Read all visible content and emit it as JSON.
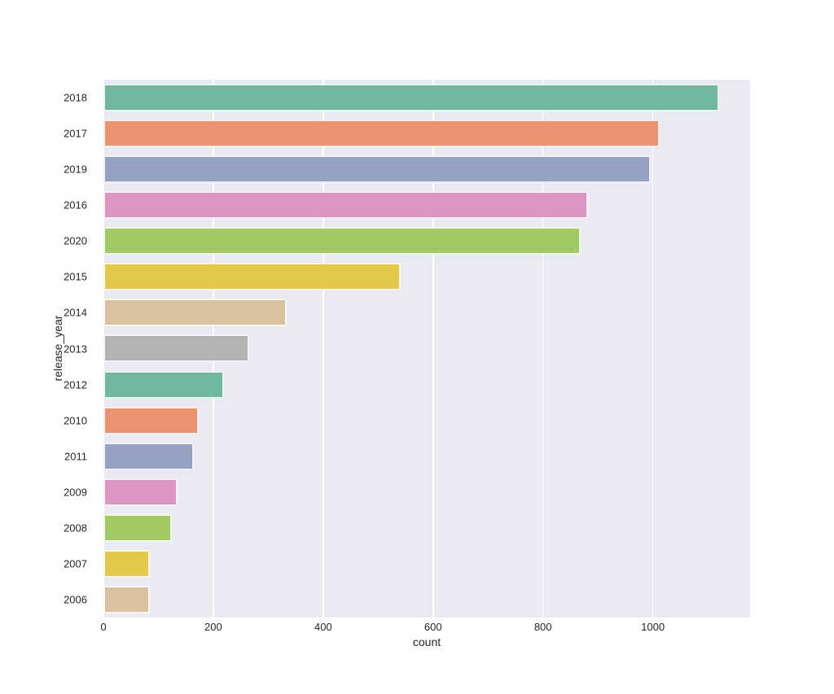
{
  "chart_data": {
    "type": "bar",
    "orientation": "horizontal",
    "title": "",
    "xlabel": "count",
    "ylabel": "release_year",
    "categories": [
      "2018",
      "2017",
      "2019",
      "2016",
      "2020",
      "2015",
      "2014",
      "2013",
      "2012",
      "2010",
      "2011",
      "2009",
      "2008",
      "2007",
      "2006"
    ],
    "values": [
      1121,
      1012,
      996,
      882,
      868,
      541,
      334,
      266,
      219,
      173,
      164,
      135,
      125,
      85,
      85
    ],
    "bar_colors": [
      "#72b7a1",
      "#e99372",
      "#96a2c4",
      "#db96c1",
      "#a3c964",
      "#e4c84b",
      "#dbc29e",
      "#b3b3b3",
      "#72b7a1",
      "#e99372",
      "#96a2c4",
      "#db96c1",
      "#a3c964",
      "#e4c84b",
      "#dbc29e"
    ],
    "x_ticks": [
      0,
      200,
      400,
      600,
      800,
      1000
    ],
    "xlim": [
      0,
      1177
    ],
    "grid": true,
    "legend": false,
    "styles": {
      "figure_bg": "#ffffff",
      "axes_bg": "#eaeaf2",
      "grid_color": "#ffffff",
      "bar_edge_color": "rgba(255,255,255,0.85)",
      "tick_label_color": "#262626"
    }
  }
}
